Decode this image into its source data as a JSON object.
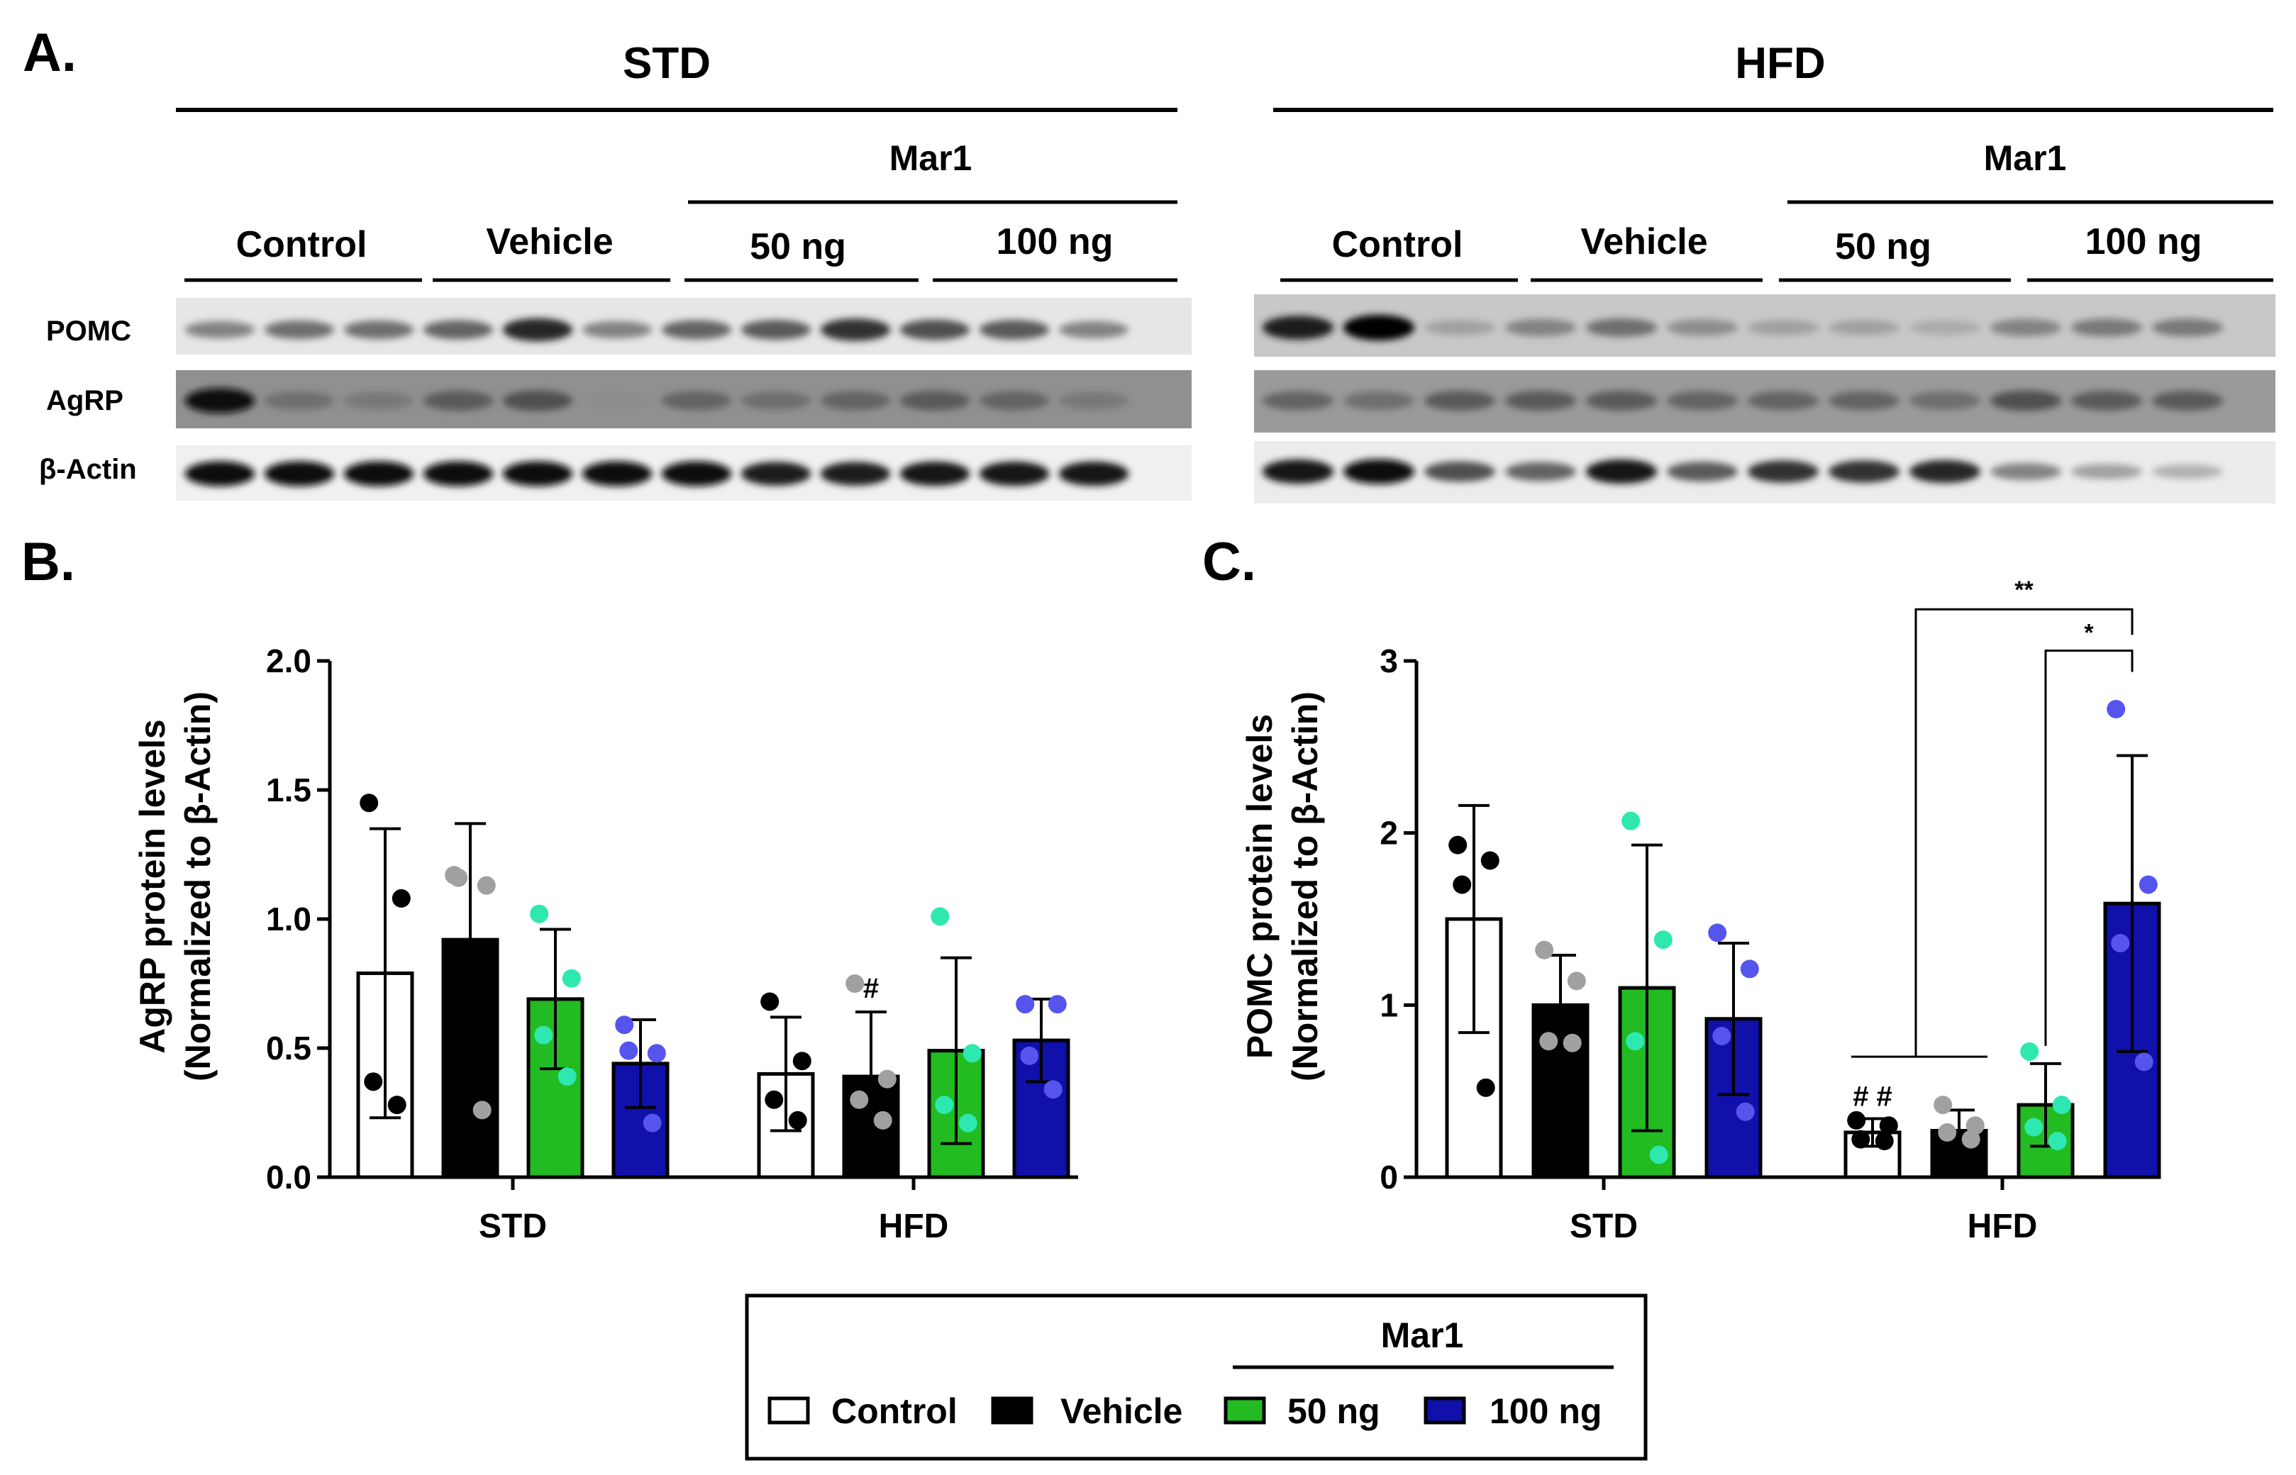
{
  "panel_a": {
    "label": "A.",
    "groups": [
      {
        "title": "STD",
        "mar1_label": "Mar1",
        "lanes": [
          "Control",
          "Vehicle",
          "50 ng",
          "100 ng"
        ]
      },
      {
        "title": "HFD",
        "mar1_label": "Mar1",
        "lanes": [
          "Control",
          "Vehicle",
          "50 ng",
          "100 ng"
        ]
      }
    ],
    "rows": [
      "POMC",
      "AgRP",
      "β-Actin"
    ]
  },
  "panel_b": {
    "label": "B."
  },
  "panel_c": {
    "label": "C."
  },
  "legend": {
    "mar1_label": "Mar1",
    "items": [
      {
        "label": "Control",
        "color": "#ffffff"
      },
      {
        "label": "Vehicle",
        "color": "#000000"
      },
      {
        "label": "50 ng",
        "color": "#22bb22"
      },
      {
        "label": "100 ng",
        "color": "#1010aa"
      }
    ]
  },
  "colors": {
    "control_fill": "#ffffff",
    "vehicle_fill": "#000000",
    "ng50_fill": "#22bb22",
    "ng100_fill": "#1010aa",
    "dot_control": "#000000",
    "dot_vehicle": "#a0a0a0",
    "dot_50ng": "#2ee8b0",
    "dot_100ng": "#5555ee"
  },
  "chart_data": [
    {
      "type": "bar",
      "panel": "B.",
      "ylabel_line1": "AgRP protein levels",
      "ylabel_line2": "(Normalized to β-Actin)",
      "ylim": [
        0,
        2.0
      ],
      "yticks": [
        "0.0",
        "0.5",
        "1.0",
        "1.5",
        "2.0"
      ],
      "categories": [
        "STD",
        "HFD"
      ],
      "series": [
        {
          "name": "Control",
          "values": [
            0.79,
            0.4
          ],
          "err": [
            0.56,
            0.22
          ],
          "points": [
            [
              1.45,
              1.08,
              0.37,
              0.28
            ],
            [
              0.68,
              0.45,
              0.3,
              0.22
            ]
          ]
        },
        {
          "name": "Vehicle",
          "values": [
            0.92,
            0.39
          ],
          "err": [
            0.45,
            0.25
          ],
          "points": [
            [
              1.17,
              1.13,
              1.16,
              0.26
            ],
            [
              0.75,
              0.38,
              0.3,
              0.22
            ]
          ]
        },
        {
          "name": "50 ng",
          "values": [
            0.69,
            0.49
          ],
          "err": [
            0.27,
            0.36
          ],
          "points": [
            [
              1.02,
              0.77,
              0.55,
              0.39
            ],
            [
              1.01,
              0.48,
              0.28,
              0.21
            ]
          ]
        },
        {
          "name": "100 ng",
          "values": [
            0.44,
            0.53
          ],
          "err": [
            0.17,
            0.16
          ],
          "points": [
            [
              0.59,
              0.48,
              0.49,
              0.21
            ],
            [
              0.67,
              0.67,
              0.47,
              0.34
            ]
          ]
        }
      ],
      "annotations": [
        {
          "text": "#",
          "category": "HFD",
          "series": "Vehicle"
        }
      ]
    },
    {
      "type": "bar",
      "panel": "C.",
      "ylabel_line1": "POMC protein levels",
      "ylabel_line2": "(Normalized to β-Actin)",
      "ylim": [
        0,
        3
      ],
      "yticks": [
        "0",
        "1",
        "2",
        "3"
      ],
      "categories": [
        "STD",
        "HFD"
      ],
      "series": [
        {
          "name": "Control",
          "values": [
            1.5,
            0.26
          ],
          "err": [
            0.66,
            0.08
          ],
          "points": [
            [
              1.93,
              1.84,
              1.7,
              0.52
            ],
            [
              0.33,
              0.3,
              0.22,
              0.21
            ]
          ]
        },
        {
          "name": "Vehicle",
          "values": [
            1.0,
            0.27
          ],
          "err": [
            0.29,
            0.12
          ],
          "points": [
            [
              1.32,
              1.14,
              0.79,
              0.78
            ],
            [
              0.42,
              0.3,
              0.26,
              0.22
            ]
          ]
        },
        {
          "name": "50 ng",
          "values": [
            1.1,
            0.42
          ],
          "err": [
            0.83,
            0.24
          ],
          "points": [
            [
              2.07,
              1.38,
              0.79,
              0.13
            ],
            [
              0.73,
              0.42,
              0.29,
              0.21
            ]
          ]
        },
        {
          "name": "100 ng",
          "values": [
            0.92,
            1.59
          ],
          "err": [
            0.44,
            0.86
          ],
          "points": [
            [
              1.42,
              1.21,
              0.82,
              0.38
            ],
            [
              2.72,
              1.7,
              1.36,
              0.67
            ]
          ]
        }
      ],
      "annotations": [
        {
          "text": "# #",
          "category": "HFD",
          "series": "Control"
        }
      ],
      "significance": [
        {
          "text": "**",
          "level": 3.3,
          "from_group": [
            "Control",
            "Vehicle"
          ],
          "to": "100 ng",
          "category": "HFD",
          "bracket_y": 0.7
        },
        {
          "text": "*",
          "level": 3.06,
          "from": "50 ng",
          "to": "100 ng",
          "category": "HFD"
        }
      ]
    }
  ]
}
